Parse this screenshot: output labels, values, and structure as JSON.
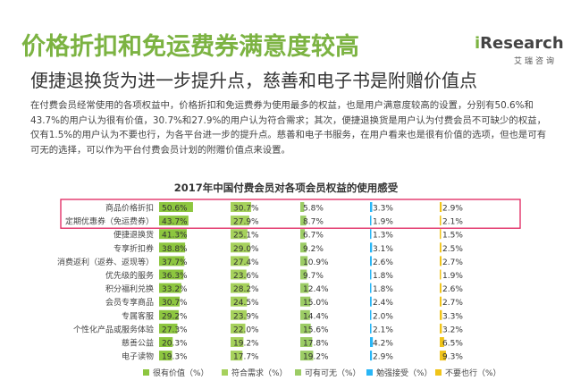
{
  "header": {
    "title": "价格折扣和免运费券满意度较高",
    "subtitle": "便捷退换货为进一步提升点，慈善和电子书是附赠价值点"
  },
  "logo": {
    "prefix": "i",
    "word": "Research",
    "chinese": "艾瑞咨询",
    "accent_color": "#7cb342"
  },
  "paragraph": "在付费会员经常使用的各项权益中，价格折扣和免运费券为使用最多的权益，也是用户满意度较高的设置，分别有50.6%和43.7%的用户认为很有价值，30.7%和27.9%的用户认为符合需求；其次，便捷退换货是用户认为付费会员不可缺少的权益，仅有1.5%的用户认为不要也行，为各平台进一步的提升点。慈善和电子书服务，在用户看来也是很有价值的选项，但也是可有可无的选择，可以作为平台付费会员计划的附赠价值点来设置。",
  "chart_data": {
    "type": "bar",
    "title": "2017年中国付费会员对各项会员权益的使用感受",
    "categories": [
      "商品价格折扣",
      "定期优惠券（免运费券）",
      "便捷退换货",
      "专享折扣券",
      "消费返利（返券、返现等）",
      "优先级的服务",
      "积分福利兑换",
      "会员专享商品",
      "专属客服",
      "个性化产品或服务体验",
      "慈善公益",
      "电子读物"
    ],
    "series": [
      {
        "name": "很有价值（%）",
        "color": "#8dc63f",
        "values": [
          50.6,
          43.7,
          41.3,
          38.8,
          37.7,
          36.3,
          33.2,
          30.7,
          29.2,
          27.3,
          20.3,
          19.3
        ]
      },
      {
        "name": "符合需求（%）",
        "color": "#a6d15c",
        "values": [
          30.7,
          27.9,
          25.1,
          29.0,
          27.4,
          23.6,
          28.2,
          24.5,
          23.9,
          22.0,
          19.2,
          17.7
        ]
      },
      {
        "name": "可有可无（%）",
        "color": "#9ccc65",
        "values": [
          5.8,
          8.7,
          6.7,
          9.2,
          10.9,
          9.7,
          12.4,
          15.0,
          14.4,
          15.6,
          17.8,
          19.2
        ]
      },
      {
        "name": "勉强接受（%）",
        "color": "#29b6f6",
        "values": [
          3.3,
          1.9,
          1.3,
          3.1,
          2.6,
          1.8,
          1.8,
          2.4,
          2.0,
          2.1,
          4.2,
          2.9
        ]
      },
      {
        "name": "不要也行（%）",
        "color": "#f0c419",
        "values": [
          2.9,
          2.1,
          1.5,
          2.5,
          2.7,
          1.9,
          2.6,
          2.7,
          3.3,
          3.2,
          6.5,
          9.3
        ]
      }
    ],
    "value_labels": [
      [
        "50.6%",
        "30.7%",
        "5.8%",
        "3.3%",
        "2.9%"
      ],
      [
        "43.7%",
        "27.9%",
        "8.7%",
        "1.9%",
        "2.1%"
      ],
      [
        "41.3%",
        "25.1%",
        "6.7%",
        "1.3%",
        "1.5%"
      ],
      [
        "38.8%",
        "29.0%",
        "9.2%",
        "3.1%",
        "2.5%"
      ],
      [
        "37.7%",
        "27.4%",
        "10.9%",
        "2.6%",
        "2.7%"
      ],
      [
        "36.3%",
        "23.6%",
        "9.7%",
        "1.8%",
        "1.9%"
      ],
      [
        "33.2%",
        "28.2%",
        "12.4%",
        "1.8%",
        "2.6%"
      ],
      [
        "30.7%",
        "24.5%",
        "15.0%",
        "2.4%",
        "2.7%"
      ],
      [
        "29.2%",
        "23.9%",
        "14.4%",
        "2.0%",
        "3.3%"
      ],
      [
        "27.3%",
        "22.0%",
        "15.6%",
        "2.1%",
        "3.2%"
      ],
      [
        "20.3%",
        "19.2%",
        "17.8%",
        "4.2%",
        "6.5%"
      ],
      [
        "19.3%",
        "17.7%",
        "19.2%",
        "2.9%",
        "9.3%"
      ]
    ],
    "highlighted_rows": [
      0,
      1
    ],
    "highlight_color": "#e0245e",
    "legend_position": "bottom",
    "grid": false
  }
}
